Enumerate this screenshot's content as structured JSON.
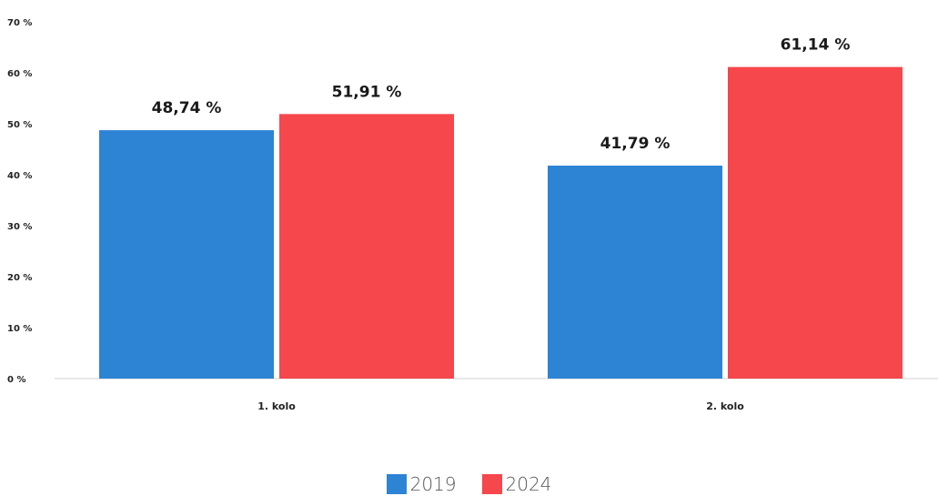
{
  "chart_data": {
    "type": "bar",
    "categories": [
      "1. kolo",
      "2. kolo"
    ],
    "series": [
      {
        "name": "2019",
        "values": [
          48.74,
          41.79
        ],
        "labels": [
          "48,74 %",
          "41,79 %"
        ],
        "color": "#2e84d4"
      },
      {
        "name": "2024",
        "values": [
          51.91,
          61.14
        ],
        "labels": [
          "51,91 %",
          "61,14 %"
        ],
        "color": "#f5474c"
      }
    ],
    "ylim": [
      0,
      70
    ],
    "yticks": [
      0,
      10,
      20,
      30,
      40,
      50,
      60,
      70
    ],
    "ytick_labels": [
      "0 %",
      "10 %",
      "20 %",
      "30 %",
      "40 %",
      "50 %",
      "60 %",
      "70 %"
    ],
    "grid": false,
    "legend_position": "bottom-center"
  }
}
